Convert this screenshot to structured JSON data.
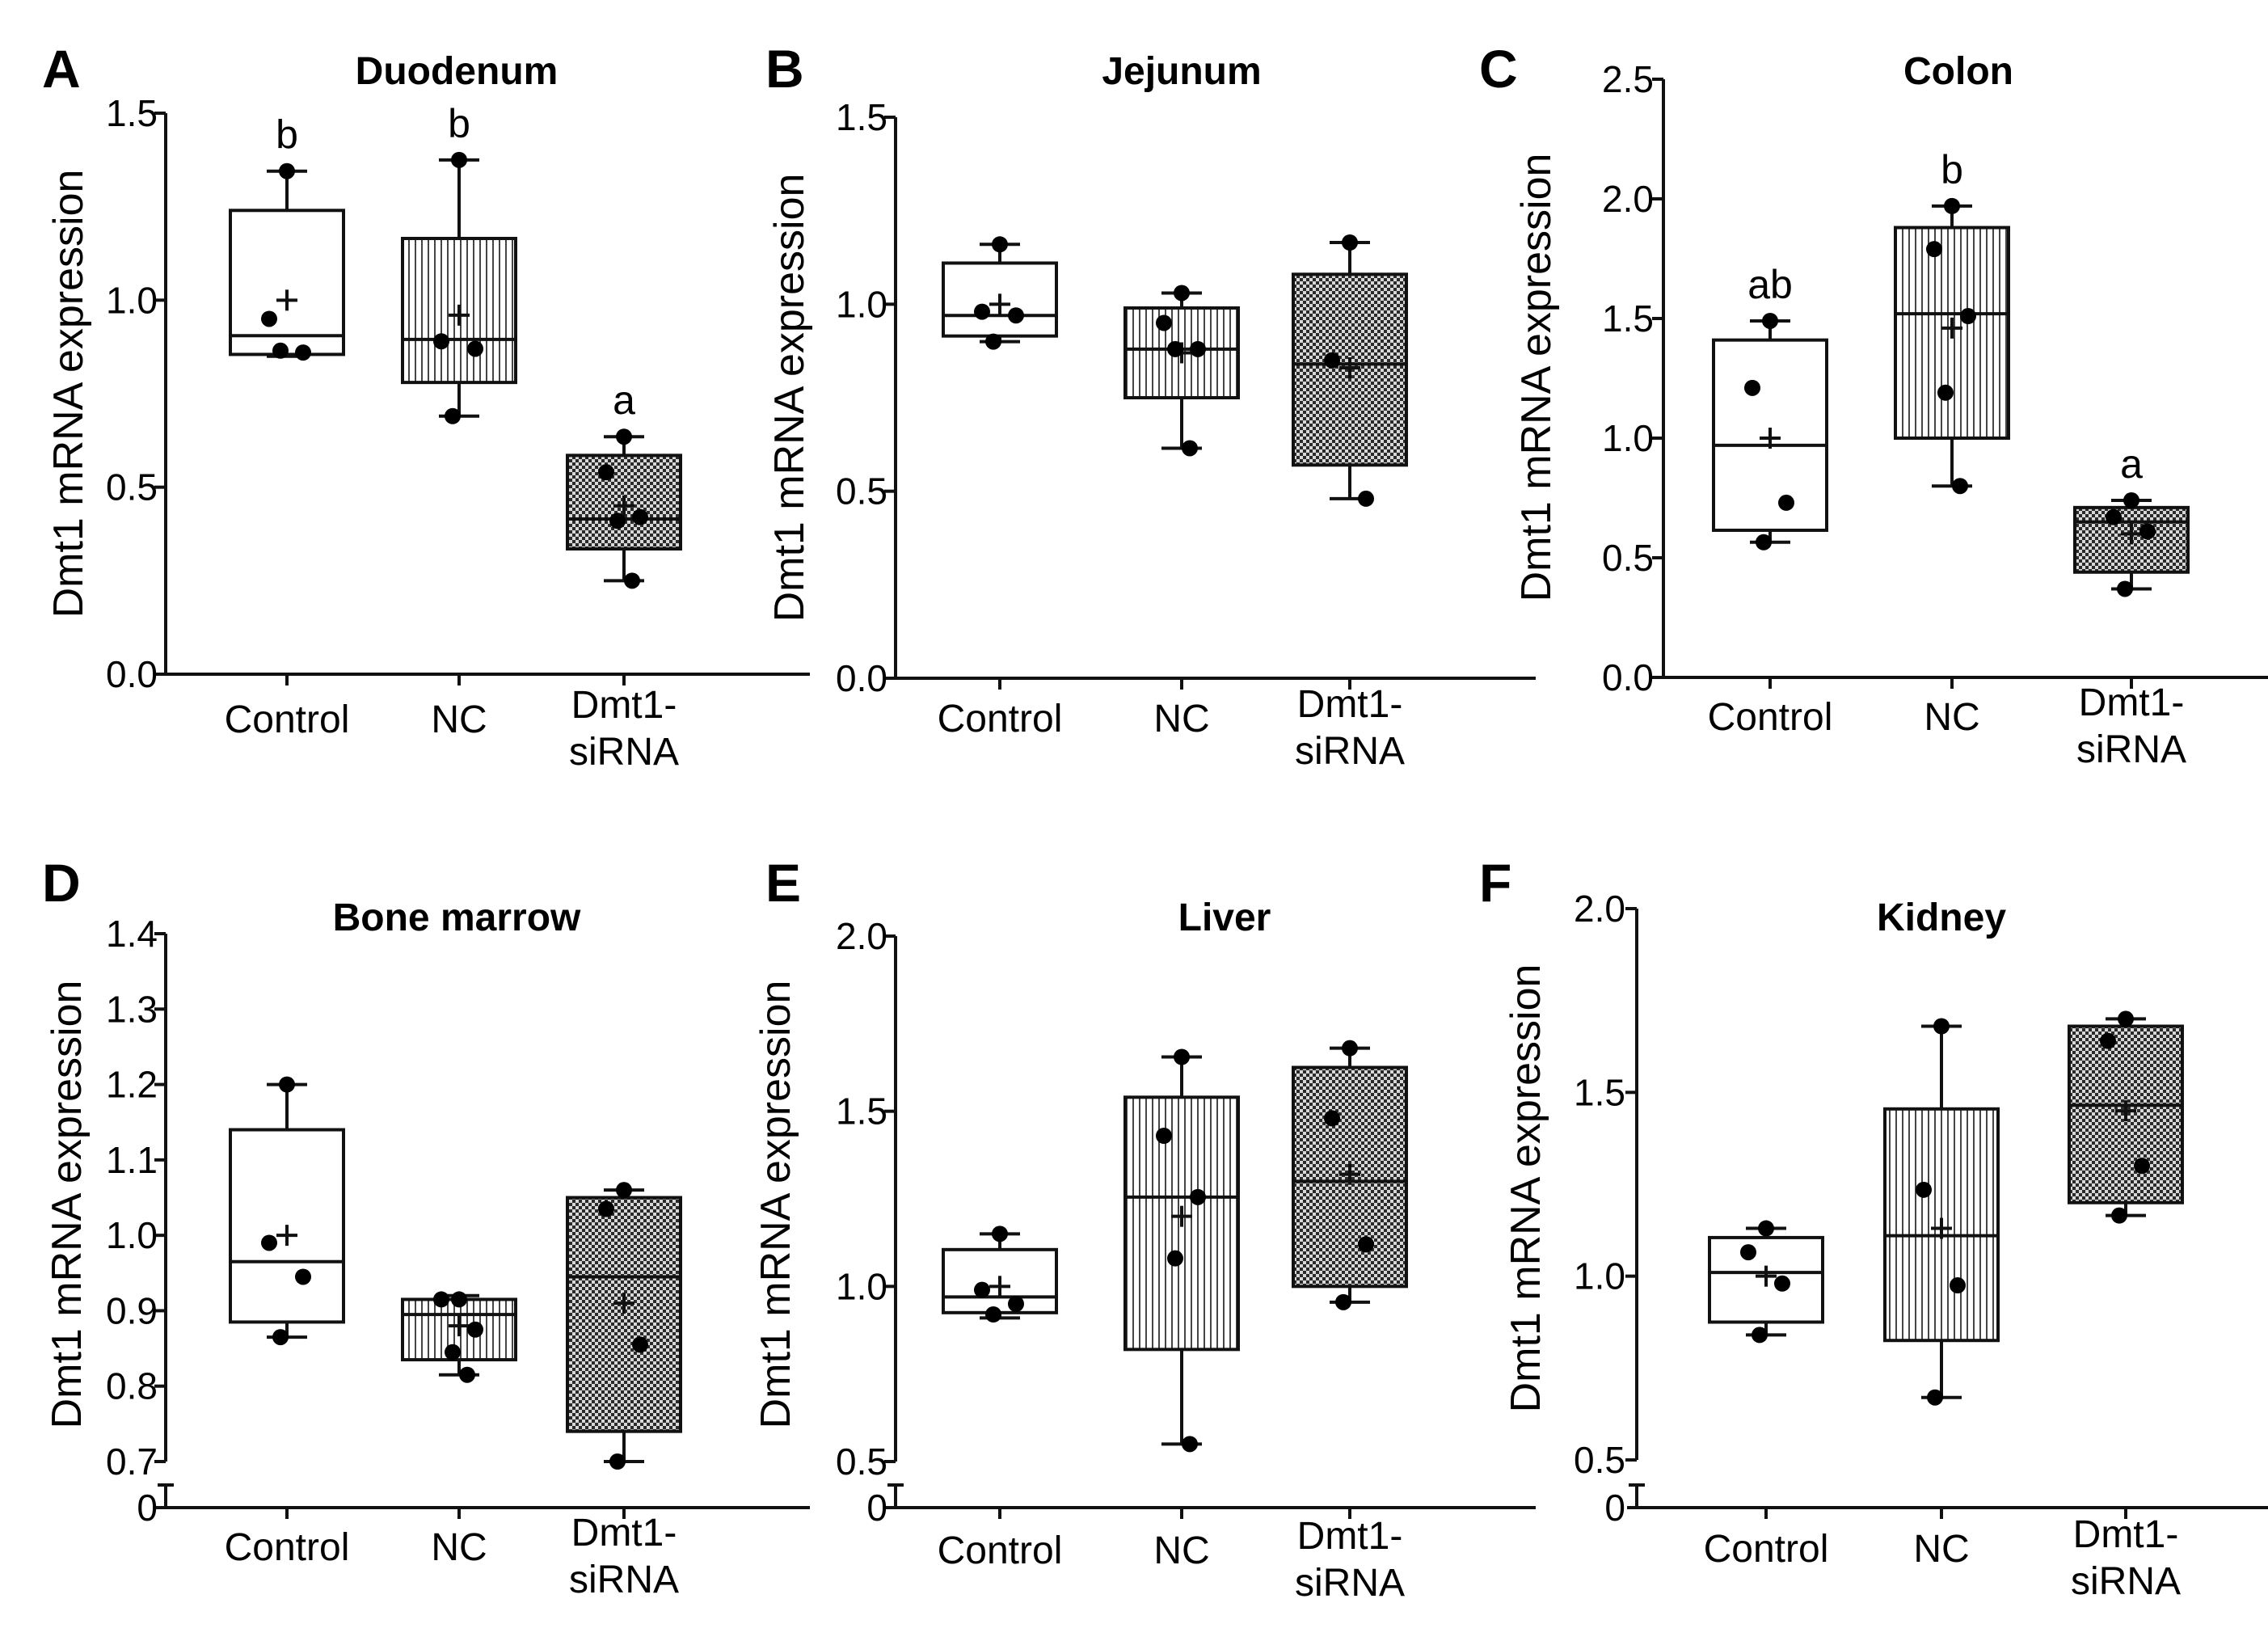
{
  "chart_data": [
    {
      "panel": "A",
      "title": "Duodenum",
      "type": "box",
      "ylabel": "Dmt1 mRNA expression",
      "ylim": [
        0,
        1.5
      ],
      "yticks": [
        "0.0",
        "0.5",
        "1.0",
        "1.5"
      ],
      "axis_break": false,
      "categories": [
        [
          "Control"
        ],
        [
          "NC"
        ],
        [
          "Dmt1-",
          "siRNA"
        ]
      ],
      "series": [
        {
          "name": "Control",
          "pattern": "plain",
          "box": {
            "min": 0.85,
            "q1": 0.855,
            "median": 0.905,
            "q3": 1.24,
            "max": 1.345,
            "mean": 1.0
          },
          "points": [
            1.345,
            0.95,
            0.86,
            0.865
          ],
          "sig": "b"
        },
        {
          "name": "NC",
          "pattern": "vertical-lines",
          "box": {
            "min": 0.69,
            "q1": 0.78,
            "median": 0.895,
            "q3": 1.165,
            "max": 1.375,
            "mean": 0.96
          },
          "points": [
            1.375,
            0.89,
            0.87,
            0.69
          ],
          "sig": "b"
        },
        {
          "name": "Dmt1-siRNA",
          "pattern": "checker",
          "box": {
            "min": 0.25,
            "q1": 0.335,
            "median": 0.415,
            "q3": 0.585,
            "max": 0.635,
            "mean": 0.45
          },
          "points": [
            0.635,
            0.54,
            0.42,
            0.41,
            0.25
          ],
          "sig": "a"
        }
      ]
    },
    {
      "panel": "B",
      "title": "Jejunum",
      "type": "box",
      "ylabel": "Dmt1 mRNA expression",
      "ylim": [
        0,
        1.5
      ],
      "yticks": [
        "0.0",
        "0.5",
        "1.0",
        "1.5"
      ],
      "axis_break": false,
      "categories": [
        [
          "Control"
        ],
        [
          "NC"
        ],
        [
          "Dmt1-",
          "siRNA"
        ]
      ],
      "series": [
        {
          "name": "Control",
          "pattern": "plain",
          "box": {
            "min": 0.9,
            "q1": 0.915,
            "median": 0.97,
            "q3": 1.11,
            "max": 1.16,
            "mean": 1.0
          },
          "points": [
            1.16,
            0.98,
            0.97,
            0.9
          ],
          "sig": ""
        },
        {
          "name": "NC",
          "pattern": "vertical-lines",
          "box": {
            "min": 0.615,
            "q1": 0.75,
            "median": 0.88,
            "q3": 0.99,
            "max": 1.03,
            "mean": 0.87
          },
          "points": [
            1.03,
            0.95,
            0.88,
            0.88,
            0.615
          ],
          "sig": ""
        },
        {
          "name": "Dmt1-siRNA",
          "pattern": "checker",
          "box": {
            "min": 0.48,
            "q1": 0.57,
            "median": 0.84,
            "q3": 1.08,
            "max": 1.165,
            "mean": 0.83
          },
          "points": [
            1.165,
            0.85,
            0.48
          ],
          "sig": ""
        }
      ]
    },
    {
      "panel": "C",
      "title": "Colon",
      "type": "box",
      "ylabel": "Dmt1 mRNA expression",
      "ylim": [
        0,
        2.5
      ],
      "yticks": [
        "0.0",
        "0.5",
        "1.0",
        "1.5",
        "2.0",
        "2.5"
      ],
      "axis_break": false,
      "categories": [
        [
          "Control"
        ],
        [
          "NC"
        ],
        [
          "Dmt1-",
          "siRNA"
        ]
      ],
      "series": [
        {
          "name": "Control",
          "pattern": "plain",
          "box": {
            "min": 0.565,
            "q1": 0.615,
            "median": 0.97,
            "q3": 1.41,
            "max": 1.49,
            "mean": 1.0
          },
          "points": [
            1.49,
            1.21,
            0.73,
            0.565
          ],
          "sig": "ab"
        },
        {
          "name": "NC",
          "pattern": "vertical-lines",
          "box": {
            "min": 0.8,
            "q1": 1.0,
            "median": 1.52,
            "q3": 1.88,
            "max": 1.97,
            "mean": 1.46
          },
          "points": [
            1.97,
            1.79,
            1.51,
            1.19,
            0.8
          ],
          "sig": "b"
        },
        {
          "name": "Dmt1-siRNA",
          "pattern": "checker",
          "box": {
            "min": 0.37,
            "q1": 0.44,
            "median": 0.65,
            "q3": 0.71,
            "max": 0.74,
            "mean": 0.6
          },
          "points": [
            0.74,
            0.67,
            0.61,
            0.37
          ],
          "sig": "a"
        }
      ]
    },
    {
      "panel": "D",
      "title": "Bone marrow",
      "type": "box",
      "ylabel": "Dmt1 mRNA expression",
      "ylim": [
        0.7,
        1.4
      ],
      "yticks": [
        "0.7",
        "0.8",
        "0.9",
        "1.0",
        "1.1",
        "1.2",
        "1.3",
        "1.4"
      ],
      "axis_break": true,
      "categories": [
        [
          "Control"
        ],
        [
          "NC"
        ],
        [
          "Dmt1-",
          "siRNA"
        ]
      ],
      "series": [
        {
          "name": "Control",
          "pattern": "plain",
          "box": {
            "min": 0.865,
            "q1": 0.885,
            "median": 0.965,
            "q3": 1.14,
            "max": 1.2,
            "mean": 1.0
          },
          "points": [
            1.2,
            0.99,
            0.945,
            0.865
          ],
          "sig": ""
        },
        {
          "name": "NC",
          "pattern": "vertical-lines",
          "box": {
            "min": 0.815,
            "q1": 0.835,
            "median": 0.895,
            "q3": 0.915,
            "max": 0.92,
            "mean": 0.88
          },
          "points": [
            0.915,
            0.915,
            0.875,
            0.845,
            0.815
          ],
          "sig": ""
        },
        {
          "name": "Dmt1-siRNA",
          "pattern": "checker",
          "box": {
            "min": 0.7,
            "q1": 0.74,
            "median": 0.945,
            "q3": 1.05,
            "max": 1.06,
            "mean": 0.91
          },
          "points": [
            1.06,
            1.035,
            0.855,
            0.7
          ],
          "sig": ""
        }
      ]
    },
    {
      "panel": "E",
      "title": "Liver",
      "type": "box",
      "ylabel": "Dmt1 mRNA expression",
      "ylim": [
        0.5,
        2.0
      ],
      "yticks": [
        "0.5",
        "1.0",
        "1.5",
        "2.0"
      ],
      "axis_break": true,
      "categories": [
        [
          "Control"
        ],
        [
          "NC"
        ],
        [
          "Dmt1-",
          "siRNA"
        ]
      ],
      "series": [
        {
          "name": "Control",
          "pattern": "plain",
          "box": {
            "min": 0.91,
            "q1": 0.925,
            "median": 0.97,
            "q3": 1.105,
            "max": 1.15,
            "mean": 1.0
          },
          "points": [
            1.15,
            0.99,
            0.95,
            0.92
          ],
          "sig": ""
        },
        {
          "name": "NC",
          "pattern": "vertical-lines",
          "box": {
            "min": 0.55,
            "q1": 0.82,
            "median": 1.255,
            "q3": 1.54,
            "max": 1.655,
            "mean": 1.2
          },
          "points": [
            1.655,
            1.43,
            1.255,
            1.08,
            0.55
          ],
          "sig": ""
        },
        {
          "name": "Dmt1-siRNA",
          "pattern": "checker",
          "box": {
            "min": 0.955,
            "q1": 1.0,
            "median": 1.3,
            "q3": 1.625,
            "max": 1.68,
            "mean": 1.32
          },
          "points": [
            1.68,
            1.48,
            1.12,
            0.955
          ],
          "sig": ""
        }
      ]
    },
    {
      "panel": "F",
      "title": "Kidney",
      "type": "box",
      "ylabel": "Dmt1 mRNA expression",
      "ylim": [
        0.5,
        2.0
      ],
      "yticks": [
        "0.5",
        "1.0",
        "1.5",
        "2.0"
      ],
      "axis_break": true,
      "categories": [
        [
          "Control"
        ],
        [
          "NC"
        ],
        [
          "Dmt1-",
          "siRNA"
        ]
      ],
      "series": [
        {
          "name": "Control",
          "pattern": "plain",
          "box": {
            "min": 0.84,
            "q1": 0.875,
            "median": 1.01,
            "q3": 1.105,
            "max": 1.13,
            "mean": 1.0
          },
          "points": [
            1.13,
            1.065,
            0.98,
            0.84
          ],
          "sig": ""
        },
        {
          "name": "NC",
          "pattern": "vertical-lines",
          "box": {
            "min": 0.67,
            "q1": 0.825,
            "median": 1.11,
            "q3": 1.455,
            "max": 1.68,
            "mean": 1.13
          },
          "points": [
            1.68,
            1.235,
            0.975,
            0.67
          ],
          "sig": ""
        },
        {
          "name": "Dmt1-siRNA",
          "pattern": "checker",
          "box": {
            "min": 1.165,
            "q1": 1.2,
            "median": 1.465,
            "q3": 1.68,
            "max": 1.7,
            "mean": 1.45
          },
          "points": [
            1.7,
            1.64,
            1.3,
            1.165
          ],
          "sig": ""
        }
      ]
    }
  ]
}
